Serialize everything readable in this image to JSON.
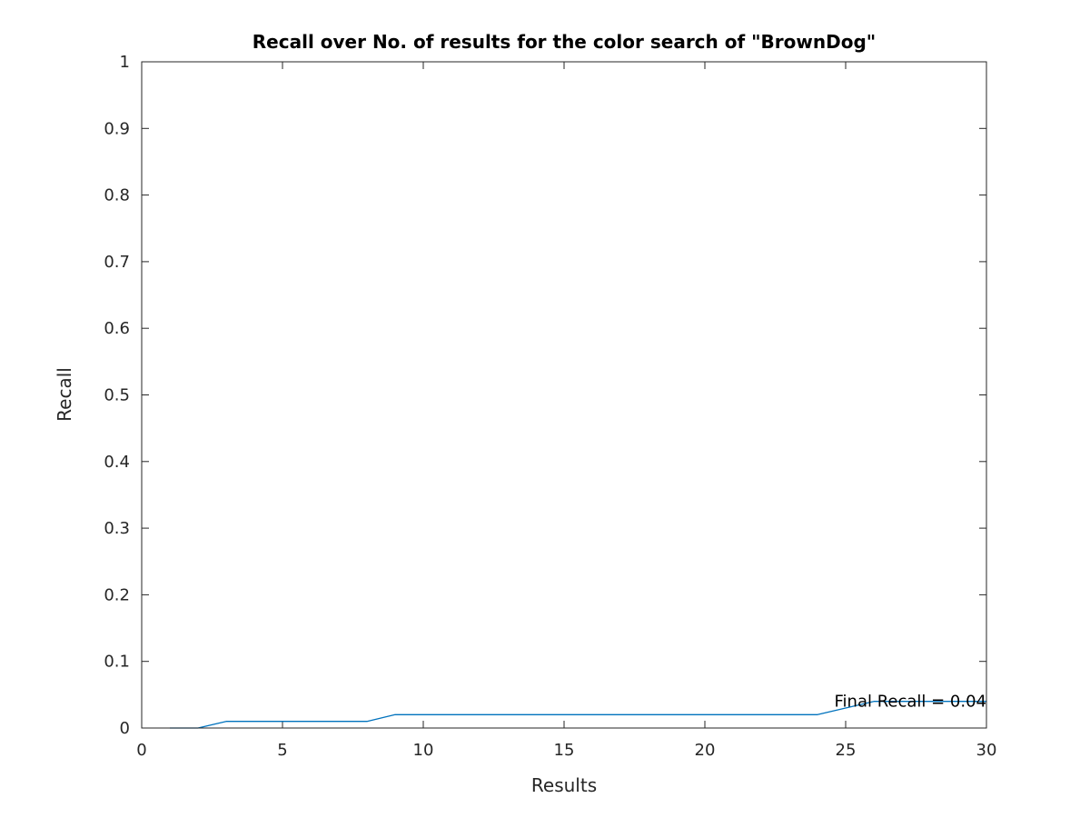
{
  "chart_data": {
    "type": "line",
    "title": "Recall over No. of results for the color search of \"BrownDog\"",
    "xlabel": "Results",
    "ylabel": "Recall",
    "xlim": [
      0,
      30
    ],
    "ylim": [
      0,
      1
    ],
    "xticks": [
      "0",
      "5",
      "10",
      "15",
      "20",
      "25",
      "30"
    ],
    "yticks": [
      "0",
      "0.1",
      "0.2",
      "0.3",
      "0.4",
      "0.5",
      "0.6",
      "0.7",
      "0.8",
      "0.9",
      "1"
    ],
    "grid": false,
    "series": [
      {
        "color": "#0072BD",
        "x": [
          1,
          2,
          3,
          4,
          5,
          6,
          7,
          8,
          9,
          10,
          11,
          12,
          13,
          14,
          15,
          16,
          17,
          18,
          19,
          20,
          21,
          22,
          23,
          24,
          25,
          26,
          27,
          28,
          29,
          30
        ],
        "y": [
          0,
          0,
          0.01,
          0.01,
          0.01,
          0.01,
          0.01,
          0.01,
          0.02,
          0.02,
          0.02,
          0.02,
          0.02,
          0.02,
          0.02,
          0.02,
          0.02,
          0.02,
          0.02,
          0.02,
          0.02,
          0.02,
          0.02,
          0.02,
          0.03,
          0.04,
          0.04,
          0.04,
          0.04,
          0.04
        ]
      }
    ],
    "annotation": {
      "text": "Final Recall = 0.04",
      "x": 30,
      "y": 0.04
    }
  }
}
